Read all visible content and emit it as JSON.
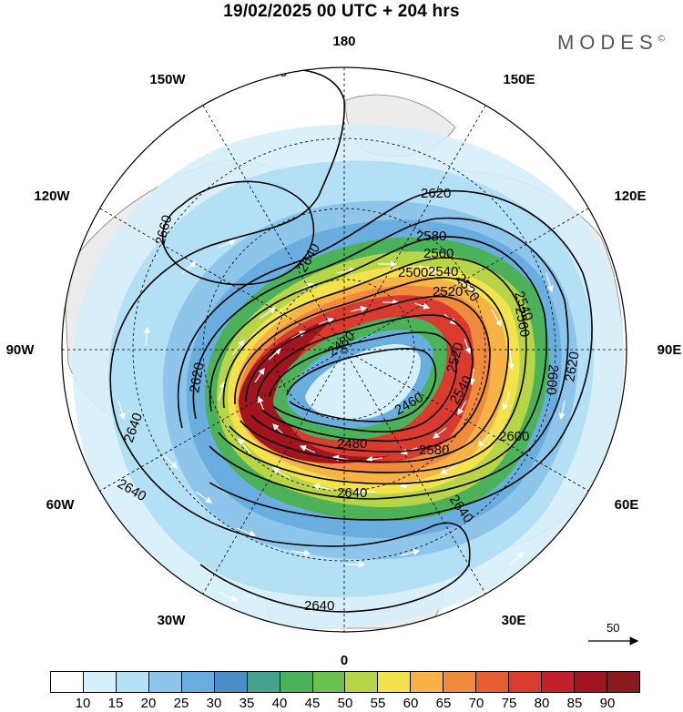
{
  "title": "19/02/2025  00 UTC  + 204 hrs",
  "brand": "MODES",
  "brand_mark": "©",
  "longitude_labels": {
    "lon_180": "180",
    "lon_150e": "150E",
    "lon_120e": "120E",
    "lon_90e": "90E",
    "lon_60e": "60E",
    "lon_30e": "30E",
    "lon_0": "0",
    "lon_30w": "30W",
    "lon_60w": "60W",
    "lon_90w": "90W",
    "lon_120w": "120W",
    "lon_150w": "150W"
  },
  "contour_labels": [
    "2640",
    "2640",
    "2660",
    "2640",
    "2620",
    "2580",
    "2560",
    "2540",
    "2520",
    "2500",
    "2480",
    "2460",
    "2520",
    "2540",
    "2560",
    "2600",
    "2620",
    "2600",
    "2540",
    "2580",
    "2520",
    "2480",
    "2640",
    "2640",
    "2640",
    "2640",
    "2620"
  ],
  "reference_vector": {
    "label": "50"
  },
  "colorbar": {
    "ticks": [
      "10",
      "15",
      "20",
      "25",
      "30",
      "35",
      "40",
      "45",
      "50",
      "55",
      "60",
      "65",
      "70",
      "75",
      "80",
      "85",
      "90"
    ],
    "colors": [
      "#ffffff",
      "#d6f0fb",
      "#b4e0f5",
      "#8ec6eb",
      "#6aaedf",
      "#4a8ec7",
      "#45a28f",
      "#4bb25a",
      "#6cc14f",
      "#b8d547",
      "#f4e24d",
      "#f7b346",
      "#f08a3c",
      "#e55f33",
      "#d93b2e",
      "#c4202b",
      "#a2151f",
      "#8b1a1e"
    ],
    "speed_colors": {
      "light_blue": "#b4e0f5",
      "mid_blue": "#6aaedf",
      "green": "#4bb25a",
      "yellow": "#f4e24d",
      "orange": "#f08a3c",
      "red": "#d93b2e",
      "dark_red": "#a2151f"
    }
  },
  "map_colors": {
    "land": "#ececec",
    "coast": "#808080",
    "grid": "#000000",
    "contour": "#000000",
    "arrow": "#ffffff"
  }
}
